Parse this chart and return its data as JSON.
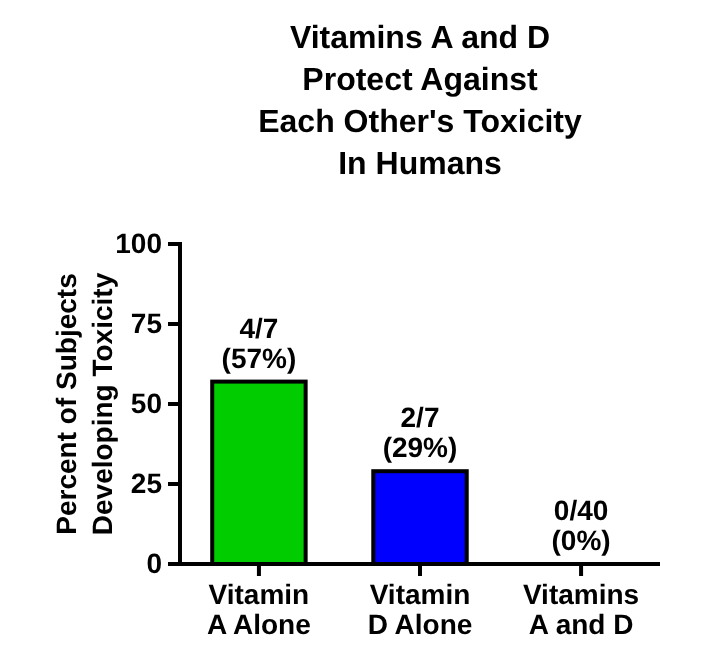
{
  "chart_data": {
    "type": "bar",
    "title": "Vitamins A and D\nProtect Against\nEach Other's Toxicity\nIn Humans",
    "ylabel": "Percent of Subjects\nDeveloping Toxicity",
    "categories": [
      "Vitamin\nA Alone",
      "Vitamin\nD Alone",
      "Vitamins\nA and D"
    ],
    "values": [
      57,
      29,
      0
    ],
    "colors": [
      "#00cc00",
      "#0000ff",
      "#000000"
    ],
    "value_labels": [
      "4/7\n(57%)",
      "2/7\n(29%)",
      "0/40\n(0%)"
    ],
    "ylim": [
      0,
      100
    ],
    "yticks": [
      0,
      25,
      50,
      75,
      100
    ],
    "grid": false
  }
}
